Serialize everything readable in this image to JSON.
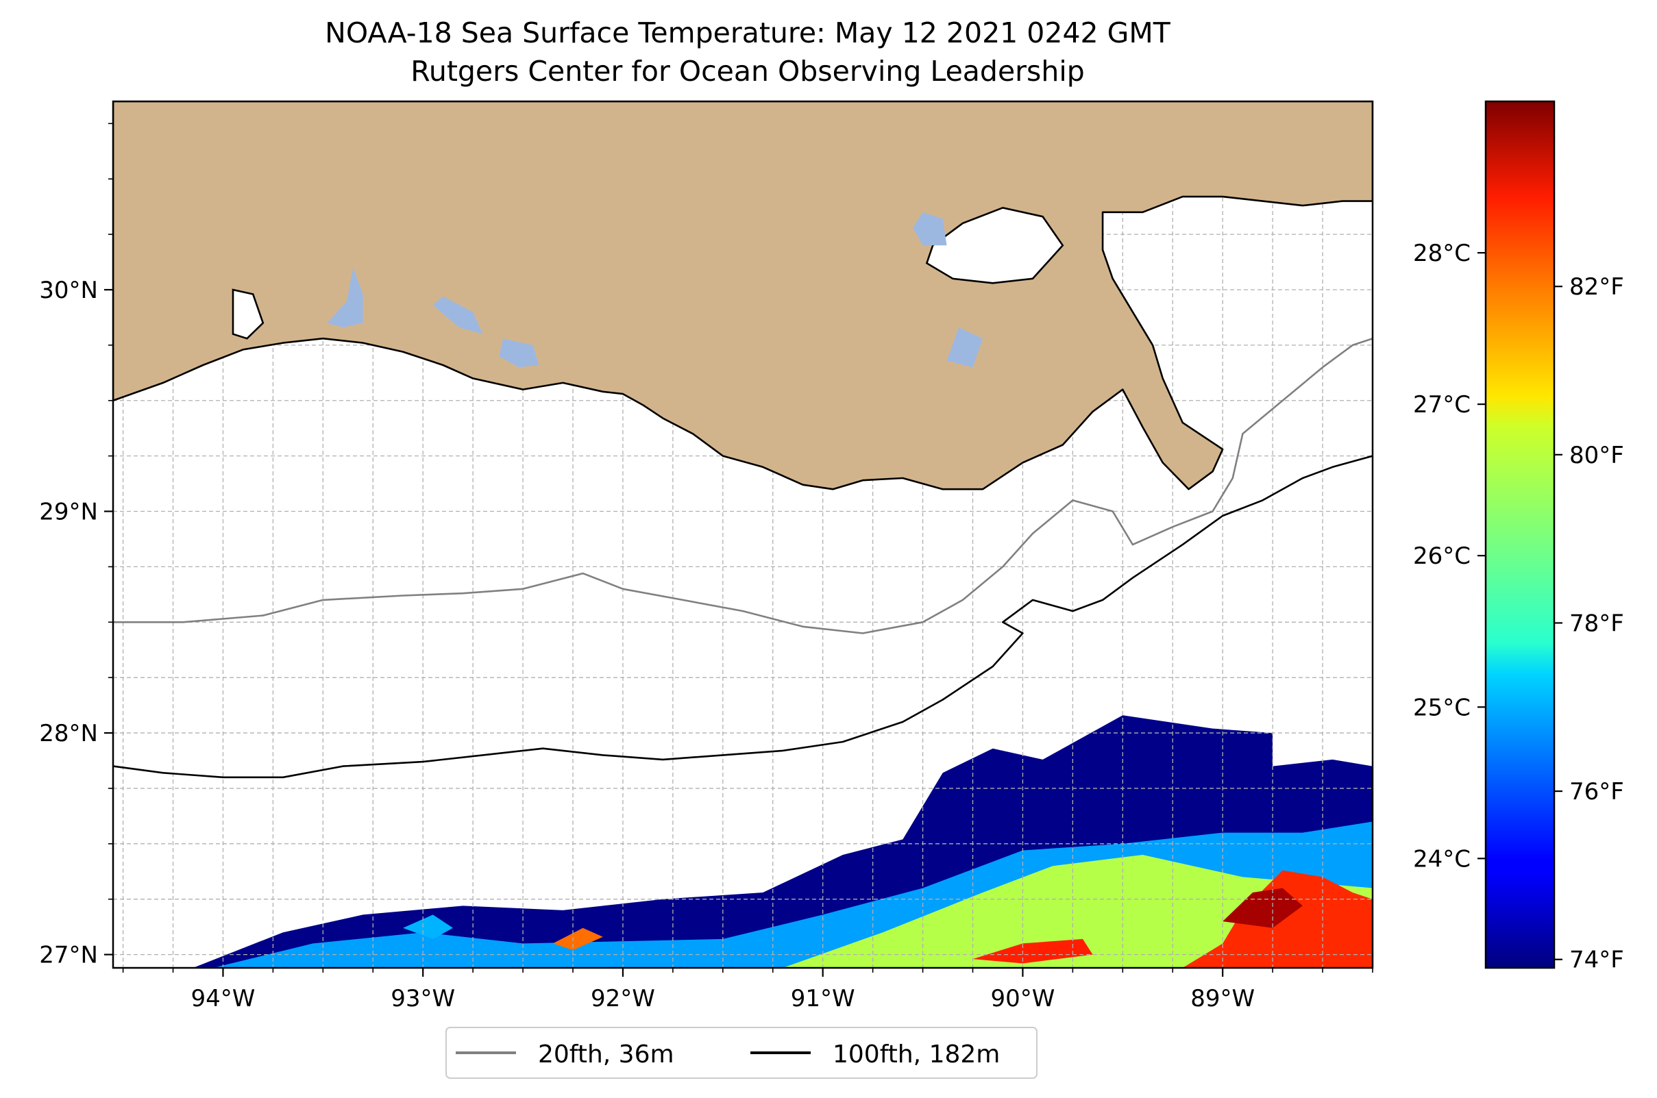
{
  "title": {
    "line1": "NOAA-18 Sea Surface Temperature: May 12 2021 0242 GMT",
    "line2": "Rutgers Center for Ocean Observing Leadership"
  },
  "map": {
    "extent": {
      "lon_min": -94.55,
      "lon_max": -88.25,
      "lat_min": 26.94,
      "lat_max": 30.85
    },
    "lon_ticks": [
      {
        "value": -94,
        "label": "94°W"
      },
      {
        "value": -93,
        "label": "93°W"
      },
      {
        "value": -92,
        "label": "92°W"
      },
      {
        "value": -91,
        "label": "91°W"
      },
      {
        "value": -90,
        "label": "90°W"
      },
      {
        "value": -89,
        "label": "89°W"
      }
    ],
    "lat_ticks": [
      {
        "value": 27,
        "label": "27°N"
      },
      {
        "value": 28,
        "label": "28°N"
      },
      {
        "value": 29,
        "label": "29°N"
      },
      {
        "value": 30,
        "label": "30°N"
      }
    ],
    "gridlines": true,
    "gridline_spacing_deg": 0.25,
    "land_color": "#d2b48c",
    "water_body_color": "#9db8e0"
  },
  "colorbar": {
    "colormap": "jet",
    "min_f": 73.9,
    "max_f": 84.2,
    "fahrenheit_ticks": [
      {
        "value": 74,
        "label": "74°F"
      },
      {
        "value": 76,
        "label": "76°F"
      },
      {
        "value": 78,
        "label": "78°F"
      },
      {
        "value": 80,
        "label": "80°F"
      },
      {
        "value": 82,
        "label": "82°F"
      }
    ],
    "celsius_ticks": [
      {
        "value": 24,
        "label": "24°C"
      },
      {
        "value": 25,
        "label": "25°C"
      },
      {
        "value": 26,
        "label": "26°C"
      },
      {
        "value": 27,
        "label": "27°C"
      },
      {
        "value": 28,
        "label": "28°C"
      }
    ]
  },
  "legend": {
    "placement": "bottom-center",
    "entries": [
      {
        "label": "20fth, 36m",
        "color": "#808080"
      },
      {
        "label": "100fth, 182m",
        "color": "#000000"
      }
    ]
  },
  "sst_regions": [
    {
      "name": "cold-band",
      "temp_f": 74.0,
      "points": [
        [
          -94.15,
          26.94
        ],
        [
          -93.7,
          27.1
        ],
        [
          -93.3,
          27.18
        ],
        [
          -92.8,
          27.22
        ],
        [
          -92.3,
          27.2
        ],
        [
          -91.8,
          27.25
        ],
        [
          -91.3,
          27.28
        ],
        [
          -90.9,
          27.45
        ],
        [
          -90.6,
          27.52
        ],
        [
          -90.4,
          27.82
        ],
        [
          -90.15,
          27.93
        ],
        [
          -89.9,
          27.88
        ],
        [
          -89.5,
          28.08
        ],
        [
          -89.05,
          28.02
        ],
        [
          -88.75,
          28.0
        ],
        [
          -88.75,
          27.85
        ],
        [
          -88.45,
          27.88
        ],
        [
          -88.25,
          27.85
        ],
        [
          -88.25,
          26.94
        ]
      ]
    },
    {
      "name": "cool-band",
      "temp_f": 76.8,
      "points": [
        [
          -94.05,
          26.94
        ],
        [
          -93.55,
          27.05
        ],
        [
          -93.0,
          27.1
        ],
        [
          -92.5,
          27.05
        ],
        [
          -91.5,
          27.07
        ],
        [
          -91.0,
          27.18
        ],
        [
          -90.5,
          27.3
        ],
        [
          -90.0,
          27.47
        ],
        [
          -89.5,
          27.5
        ],
        [
          -89.0,
          27.55
        ],
        [
          -88.6,
          27.55
        ],
        [
          -88.25,
          27.6
        ],
        [
          -88.25,
          26.94
        ]
      ]
    },
    {
      "name": "warm-band",
      "temp_f": 79.6,
      "points": [
        [
          -91.2,
          26.94
        ],
        [
          -90.7,
          27.1
        ],
        [
          -90.2,
          27.28
        ],
        [
          -89.85,
          27.4
        ],
        [
          -89.4,
          27.45
        ],
        [
          -88.9,
          27.35
        ],
        [
          -88.5,
          27.32
        ],
        [
          -88.25,
          27.3
        ],
        [
          -88.25,
          26.94
        ]
      ]
    },
    {
      "name": "hot-patch",
      "temp_f": 82.5,
      "points": [
        [
          -89.2,
          26.94
        ],
        [
          -89.0,
          27.05
        ],
        [
          -88.9,
          27.2
        ],
        [
          -88.7,
          27.38
        ],
        [
          -88.5,
          27.35
        ],
        [
          -88.35,
          27.28
        ],
        [
          -88.25,
          27.25
        ],
        [
          -88.25,
          26.94
        ]
      ]
    },
    {
      "name": "hottest-patch",
      "temp_f": 83.8,
      "points": [
        [
          -89.0,
          27.15
        ],
        [
          -88.85,
          27.28
        ],
        [
          -88.7,
          27.3
        ],
        [
          -88.6,
          27.22
        ],
        [
          -88.75,
          27.12
        ]
      ]
    },
    {
      "name": "west-cool-spot",
      "temp_f": 77.0,
      "points": [
        [
          -93.1,
          27.12
        ],
        [
          -92.95,
          27.18
        ],
        [
          -92.85,
          27.12
        ],
        [
          -92.95,
          27.07
        ]
      ]
    },
    {
      "name": "mid-warm-spot",
      "temp_f": 81.8,
      "points": [
        [
          -92.35,
          27.05
        ],
        [
          -92.2,
          27.12
        ],
        [
          -92.1,
          27.08
        ],
        [
          -92.25,
          27.02
        ]
      ]
    },
    {
      "name": "south-warm-spot",
      "temp_f": 82.6,
      "points": [
        [
          -90.25,
          26.98
        ],
        [
          -90.0,
          27.05
        ],
        [
          -89.7,
          27.07
        ],
        [
          -89.65,
          27.0
        ],
        [
          -90.0,
          26.96
        ]
      ]
    }
  ],
  "coastline": [
    [
      -94.55,
      29.5
    ],
    [
      -94.3,
      29.58
    ],
    [
      -94.1,
      29.66
    ],
    [
      -93.9,
      29.73
    ],
    [
      -93.7,
      29.76
    ],
    [
      -93.5,
      29.78
    ],
    [
      -93.3,
      29.76
    ],
    [
      -93.1,
      29.72
    ],
    [
      -92.9,
      29.66
    ],
    [
      -92.75,
      29.6
    ],
    [
      -92.5,
      29.55
    ],
    [
      -92.3,
      29.58
    ],
    [
      -92.1,
      29.54
    ],
    [
      -92.0,
      29.53
    ],
    [
      -91.9,
      29.48
    ],
    [
      -91.8,
      29.42
    ],
    [
      -91.65,
      29.35
    ],
    [
      -91.5,
      29.25
    ],
    [
      -91.3,
      29.2
    ],
    [
      -91.1,
      29.12
    ],
    [
      -90.95,
      29.1
    ],
    [
      -90.8,
      29.14
    ],
    [
      -90.6,
      29.15
    ],
    [
      -90.4,
      29.1
    ],
    [
      -90.2,
      29.1
    ],
    [
      -90.0,
      29.22
    ],
    [
      -89.8,
      29.3
    ],
    [
      -89.65,
      29.45
    ],
    [
      -89.5,
      29.55
    ],
    [
      -89.4,
      29.38
    ],
    [
      -89.3,
      29.22
    ],
    [
      -89.17,
      29.1
    ],
    [
      -89.05,
      29.18
    ],
    [
      -89.0,
      29.28
    ],
    [
      -89.2,
      29.4
    ],
    [
      -89.3,
      29.6
    ],
    [
      -89.35,
      29.75
    ],
    [
      -89.45,
      29.9
    ],
    [
      -89.55,
      30.05
    ],
    [
      -89.6,
      30.18
    ],
    [
      -89.6,
      30.35
    ],
    [
      -89.4,
      30.35
    ],
    [
      -89.2,
      30.42
    ],
    [
      -89.0,
      30.42
    ],
    [
      -88.8,
      30.4
    ],
    [
      -88.6,
      30.38
    ],
    [
      -88.4,
      30.4
    ],
    [
      -88.25,
      30.4
    ],
    [
      -88.25,
      30.85
    ],
    [
      -94.55,
      30.85
    ]
  ],
  "lake_pontchartrain": [
    [
      -90.45,
      30.2
    ],
    [
      -90.3,
      30.3
    ],
    [
      -90.1,
      30.37
    ],
    [
      -89.9,
      30.33
    ],
    [
      -89.8,
      30.2
    ],
    [
      -89.95,
      30.05
    ],
    [
      -90.15,
      30.03
    ],
    [
      -90.35,
      30.05
    ],
    [
      -90.48,
      30.12
    ]
  ],
  "sabine_lake": [
    [
      -93.95,
      30.0
    ],
    [
      -93.85,
      29.98
    ],
    [
      -93.8,
      29.85
    ],
    [
      -93.88,
      29.78
    ],
    [
      -93.95,
      29.8
    ]
  ],
  "inland_lakes": [
    [
      [
        -93.35,
        30.1
      ],
      [
        -93.3,
        29.98
      ],
      [
        -93.3,
        29.85
      ],
      [
        -93.4,
        29.83
      ],
      [
        -93.48,
        29.85
      ],
      [
        -93.38,
        29.95
      ]
    ],
    [
      [
        -92.9,
        29.97
      ],
      [
        -92.75,
        29.9
      ],
      [
        -92.7,
        29.8
      ],
      [
        -92.82,
        29.83
      ],
      [
        -92.95,
        29.93
      ]
    ],
    [
      [
        -92.6,
        29.78
      ],
      [
        -92.45,
        29.75
      ],
      [
        -92.42,
        29.66
      ],
      [
        -92.52,
        29.65
      ],
      [
        -92.62,
        29.7
      ]
    ],
    [
      [
        -90.5,
        30.35
      ],
      [
        -90.4,
        30.32
      ],
      [
        -90.38,
        30.2
      ],
      [
        -90.5,
        30.2
      ],
      [
        -90.55,
        30.28
      ]
    ],
    [
      [
        -90.32,
        29.83
      ],
      [
        -90.2,
        29.78
      ],
      [
        -90.25,
        29.65
      ],
      [
        -90.38,
        29.68
      ]
    ]
  ],
  "contour_20fth": [
    [
      -94.55,
      28.5
    ],
    [
      -94.2,
      28.5
    ],
    [
      -93.8,
      28.53
    ],
    [
      -93.5,
      28.6
    ],
    [
      -93.1,
      28.62
    ],
    [
      -92.8,
      28.63
    ],
    [
      -92.5,
      28.65
    ],
    [
      -92.2,
      28.72
    ],
    [
      -92.0,
      28.65
    ],
    [
      -91.7,
      28.6
    ],
    [
      -91.4,
      28.55
    ],
    [
      -91.1,
      28.48
    ],
    [
      -90.8,
      28.45
    ],
    [
      -90.5,
      28.5
    ],
    [
      -90.3,
      28.6
    ],
    [
      -90.1,
      28.75
    ],
    [
      -89.95,
      28.9
    ],
    [
      -89.75,
      29.05
    ],
    [
      -89.55,
      29.0
    ],
    [
      -89.45,
      28.85
    ],
    [
      -89.25,
      28.93
    ],
    [
      -89.05,
      29.0
    ],
    [
      -88.95,
      29.15
    ],
    [
      -88.9,
      29.35
    ],
    [
      -88.7,
      29.5
    ],
    [
      -88.5,
      29.65
    ],
    [
      -88.35,
      29.75
    ],
    [
      -88.25,
      29.78
    ]
  ],
  "contour_100fth": [
    [
      -94.55,
      27.85
    ],
    [
      -94.3,
      27.82
    ],
    [
      -94.0,
      27.8
    ],
    [
      -93.7,
      27.8
    ],
    [
      -93.4,
      27.85
    ],
    [
      -93.0,
      27.87
    ],
    [
      -92.7,
      27.9
    ],
    [
      -92.4,
      27.93
    ],
    [
      -92.1,
      27.9
    ],
    [
      -91.8,
      27.88
    ],
    [
      -91.5,
      27.9
    ],
    [
      -91.2,
      27.92
    ],
    [
      -90.9,
      27.96
    ],
    [
      -90.6,
      28.05
    ],
    [
      -90.4,
      28.15
    ],
    [
      -90.15,
      28.3
    ],
    [
      -90.0,
      28.45
    ],
    [
      -90.1,
      28.5
    ],
    [
      -89.95,
      28.6
    ],
    [
      -89.75,
      28.55
    ],
    [
      -89.6,
      28.6
    ],
    [
      -89.45,
      28.7
    ],
    [
      -89.2,
      28.85
    ],
    [
      -89.0,
      28.98
    ],
    [
      -88.8,
      29.05
    ],
    [
      -88.6,
      29.15
    ],
    [
      -88.45,
      29.2
    ],
    [
      -88.25,
      29.25
    ]
  ]
}
